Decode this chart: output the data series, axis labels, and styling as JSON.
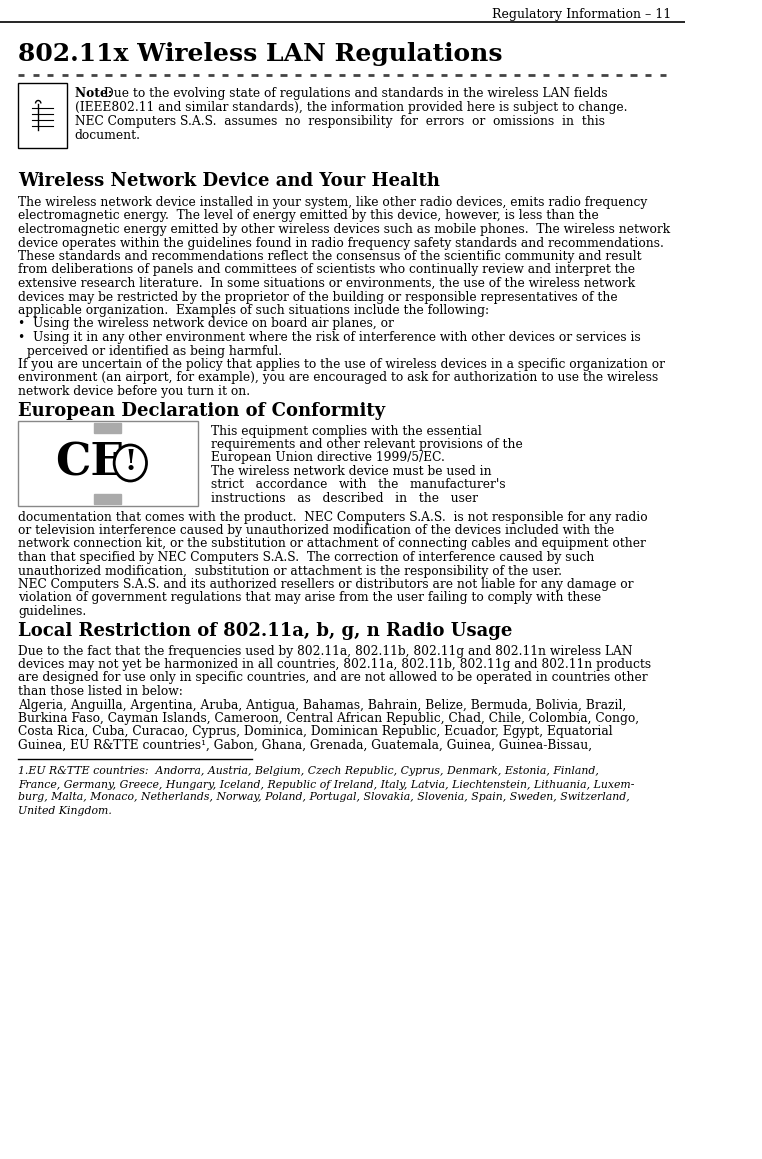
{
  "bg_color": "#ffffff",
  "header_text": "Regulatory Information – 11",
  "title": "802.11x Wireless LAN Regulations",
  "note_text": "Due to the evolving state of regulations and standards in the wireless LAN fields\n(IEEE802.11 and similar standards), the information provided here is subject to change.\nNEC Computers S.A.S.  assumes  no  responsibility  for  errors  or  omissions  in  this\ndocument.",
  "note_bold": "Note:",
  "section1_title": "Wireless Network Device and Your Health",
  "section1_body": "The wireless network device installed in your system, like other radio devices, emits radio frequency\nelectromagnetic energy.  The level of energy emitted by this device, however, is less than the\nelectromagnetic energy emitted by other wireless devices such as mobile phones.  The wireless network\ndevice operates within the guidelines found in radio frequency safety standards and recommendations.\nThese standards and recommendations reflect the consensus of the scientific community and result\nfrom deliberations of panels and committees of scientists who continually review and interpret the\nextensive research literature.  In some situations or environments, the use of the wireless network\ndevices may be restricted by the proprietor of the building or responsible representatives of the\napplicable organization.  Examples of such situations include the following:",
  "bullet1": "Using the wireless network device on board air planes, or",
  "bullet2": "Using it in any other environment where the risk of interference with other devices or services is\nperceived or identified as being harmful.",
  "section1_closing": "If you are uncertain of the policy that applies to the use of wireless devices in a specific organization or\nenvironment (an airport, for example), you are encouraged to ask for authorization to use the wireless\nnetwork device before you turn it on.",
  "section2_title": "European Declaration of Conformity",
  "ce_text_right": "This equipment complies with the essential\nrequirements and other relevant provisions of the\nEuropean Union directive 1999/5/EC.\nThe wireless network device must be used in\nstrict   accordance   with   the   manufacturer's\ninstructions   as   described   in   the   user",
  "section2_body": "documentation that comes with the product.  NEC Computers S.A.S.  is not responsible for any radio\nor television interference caused by unauthorized modification of the devices included with the\nnetwork connection kit, or the substitution or attachment of connecting cables and equipment other\nthan that specified by NEC Computers S.A.S.  The correction of interference caused by such\nunauthorized modification,  substitution or attachment is the responsibility of the user.\nNEC Computers S.A.S. and its authorized resellers or distributors are not liable for any damage or\nviolation of government regulations that may arise from the user failing to comply with these\nguidelines.",
  "section3_title": "Local Restriction of 802.11a, b, g, n Radio Usage",
  "section3_body": "Due to the fact that the frequencies used by 802.11a, 802.11b, 802.11g and 802.11n wireless LAN\ndevices may not yet be harmonized in all countries, 802.11a, 802.11b, 802.11g and 802.11n products\nare designed for use only in specific countries, and are not allowed to be operated in countries other\nthan those listed in below:\nAlgeria, Anguilla, Argentina, Aruba, Antigua, Bahamas, Bahrain, Belize, Bermuda, Bolivia, Brazil,\nBurkina Faso, Cayman Islands, Cameroon, Central African Republic, Chad, Chile, Colombia, Congo,\nCosta Rica, Cuba, Curacao, Cyprus, Dominica, Dominican Republic, Ecuador, Egypt, Equatorial\nGuinea, EU R&TTE countries¹, Gabon, Ghana, Grenada, Guatemala, Guinea, Guinea-Bissau,",
  "footnote_line": "1.EU R&TTE countries:  Andorra, Austria, Belgium, Czech Republic, Cyprus, Denmark, Estonia, Finland,\nFrance, Germany, Greece, Hungary, Iceland, Republic of Ireland, Italy, Latvia, Liechtenstein, Lithuania, Luxem-\nburg, Malta, Monaco, Netherlands, Norway, Poland, Portugal, Slovakia, Slovenia, Spain, Sweden, Switzerland,\nUnited Kingdom.",
  "font_family": "serif",
  "text_color": "#000000",
  "header_color": "#000000",
  "title_color": "#000000",
  "dashed_line_color": "#555555",
  "footnote_line_color": "#000000"
}
